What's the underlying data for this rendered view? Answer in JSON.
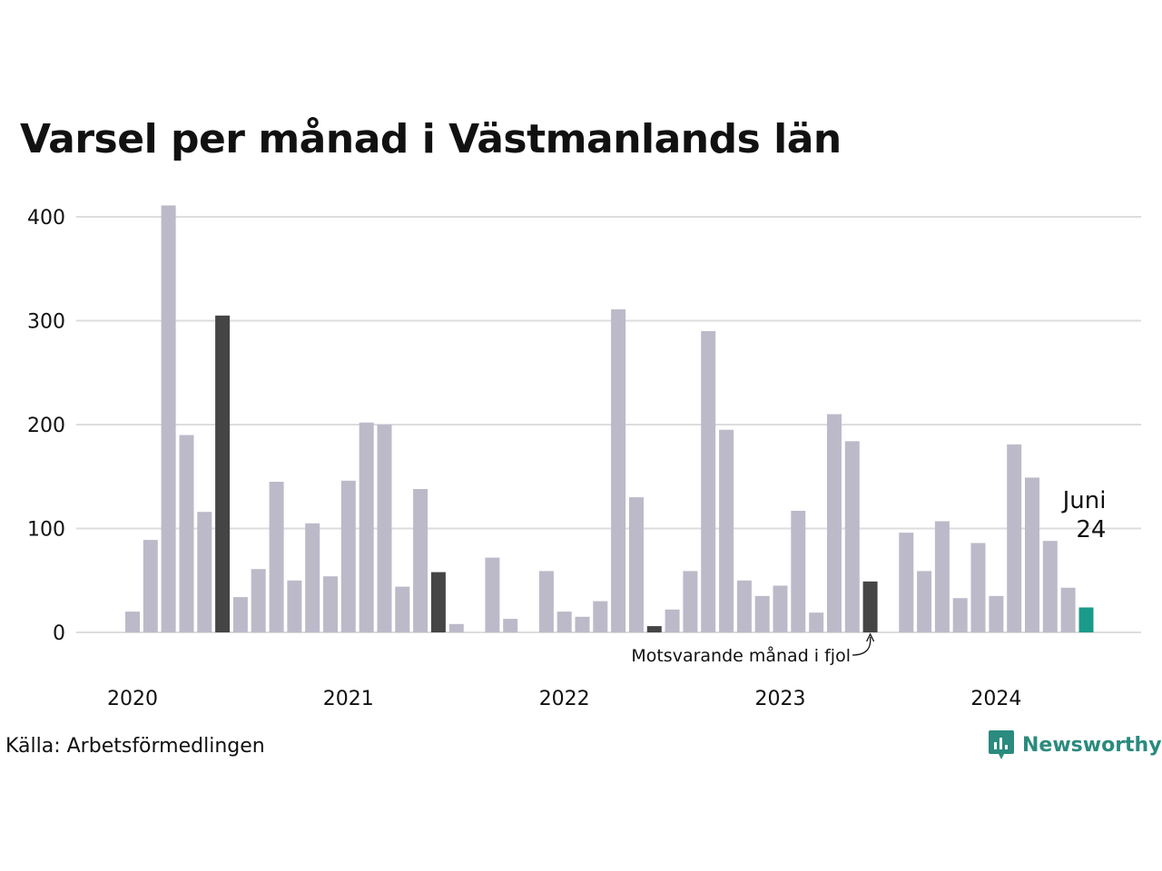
{
  "title": "Varsel per månad i Västmanlands län",
  "source": "Källa: Arbetsförmedlingen",
  "brand": "Newsworthy",
  "colors": {
    "bar": "#bcbac9",
    "comparison": "#454545",
    "current": "#1a9b8a",
    "grid": "#dddddd",
    "brand": "#2a8b7e"
  },
  "icons": {
    "brand_logo": "bar-chart-badge-icon"
  },
  "chart_data": {
    "type": "bar",
    "title": "Varsel per månad i Västmanlands län",
    "xlabel": "",
    "ylabel": "",
    "ylim": [
      0,
      400
    ],
    "grid": true,
    "yticks": [
      "0",
      "100",
      "200",
      "300",
      "400"
    ],
    "x_year_labels": [
      "2020",
      "2021",
      "2022",
      "2023",
      "2024"
    ],
    "categories": [
      "2020-01",
      "2020-02",
      "2020-03",
      "2020-04",
      "2020-05",
      "2020-06",
      "2020-07",
      "2020-08",
      "2020-09",
      "2020-10",
      "2020-11",
      "2020-12",
      "2021-01",
      "2021-02",
      "2021-03",
      "2021-04",
      "2021-05",
      "2021-06",
      "2021-07",
      "2021-08",
      "2021-09",
      "2021-10",
      "2021-11",
      "2021-12",
      "2022-01",
      "2022-02",
      "2022-03",
      "2022-04",
      "2022-05",
      "2022-06",
      "2022-07",
      "2022-08",
      "2022-09",
      "2022-10",
      "2022-11",
      "2022-12",
      "2023-01",
      "2023-02",
      "2023-03",
      "2023-04",
      "2023-05",
      "2023-06",
      "2023-07",
      "2023-08",
      "2023-09",
      "2023-10",
      "2023-11",
      "2023-12",
      "2024-01",
      "2024-02",
      "2024-03",
      "2024-04",
      "2024-05",
      "2024-06"
    ],
    "values": [
      20,
      89,
      411,
      190,
      116,
      305,
      34,
      61,
      145,
      50,
      105,
      54,
      146,
      202,
      200,
      44,
      138,
      58,
      8,
      0,
      72,
      13,
      0,
      59,
      20,
      15,
      30,
      311,
      130,
      6,
      22,
      59,
      290,
      195,
      50,
      35,
      45,
      117,
      19,
      210,
      184,
      49,
      0,
      96,
      59,
      107,
      33,
      86,
      35,
      181,
      149,
      88,
      43,
      24
    ],
    "highlight": {
      "current_index": 53,
      "comparison_indices": [
        5,
        17,
        29,
        41
      ],
      "current_label_month": "Juni",
      "current_label_value": "24"
    },
    "annotation": "Motsvarande månad i fjol"
  }
}
